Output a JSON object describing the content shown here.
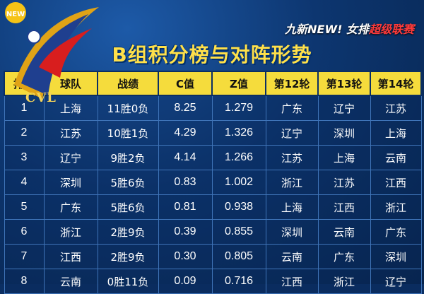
{
  "logo": {
    "text": "CVL"
  },
  "brand": {
    "prefix": "九新",
    "new": "NEW!",
    "league": "女排",
    "red": "超级联赛"
  },
  "title": "B组积分榜与对阵形势",
  "colors": {
    "header_bg": "#f5dc3c",
    "title": "#ffe04a",
    "background": "#0b2f63"
  },
  "table": {
    "headers": [
      "排名",
      "球队",
      "战绩",
      "C值",
      "Z值",
      "第12轮",
      "第13轮",
      "第14轮"
    ],
    "rows": [
      [
        "1",
        "上海",
        "11胜0负",
        "8.25",
        "1.279",
        "广东",
        "辽宁",
        "江苏"
      ],
      [
        "2",
        "江苏",
        "10胜1负",
        "4.29",
        "1.326",
        "辽宁",
        "深圳",
        "上海"
      ],
      [
        "3",
        "辽宁",
        "9胜2负",
        "4.14",
        "1.266",
        "江苏",
        "上海",
        "云南"
      ],
      [
        "4",
        "深圳",
        "5胜6负",
        "0.83",
        "1.002",
        "浙江",
        "江苏",
        "江西"
      ],
      [
        "5",
        "广东",
        "5胜6负",
        "0.81",
        "0.938",
        "上海",
        "江西",
        "浙江"
      ],
      [
        "6",
        "浙江",
        "2胜9负",
        "0.39",
        "0.855",
        "深圳",
        "云南",
        "广东"
      ],
      [
        "7",
        "江西",
        "2胜9负",
        "0.30",
        "0.805",
        "云南",
        "广东",
        "深圳"
      ],
      [
        "8",
        "云南",
        "0胜11负",
        "0.09",
        "0.716",
        "江西",
        "浙江",
        "辽宁"
      ]
    ]
  }
}
